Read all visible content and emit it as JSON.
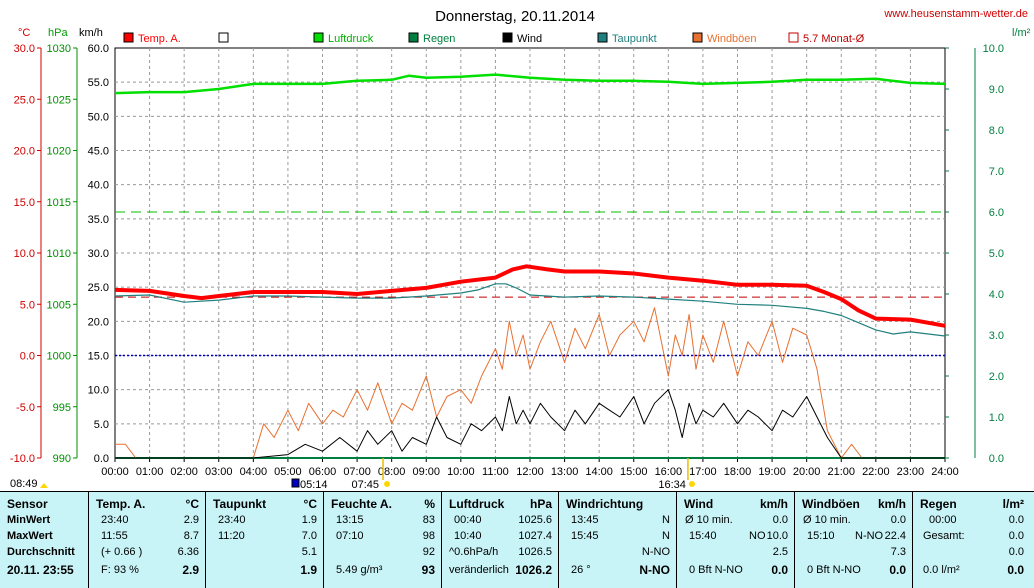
{
  "title": "Donnerstag, 20.11.2014",
  "site": "www.heusenstamm-wetter.de",
  "units": {
    "temp": "°C",
    "pressure": "hPa",
    "wind": "km/h",
    "rain": "l/m²"
  },
  "colors": {
    "temp": "#ff0000",
    "pressure": "#00e000",
    "dew": "#208080",
    "wind": "#000000",
    "gust": "#e87030",
    "rain": "#008040",
    "avg": "#c00000",
    "frost": "#0000c0",
    "rainAxis": "#008040"
  },
  "markers": {
    "sunrise": "07:45",
    "sunset": "16:34",
    "moonrise": "05:14",
    "moonset": "08:49"
  },
  "chart_data": {
    "type": "line",
    "x_labels": [
      "00:00",
      "01:00",
      "02:00",
      "03:00",
      "04:00",
      "05:00",
      "06:00",
      "07:00",
      "08:00",
      "09:00",
      "10:00",
      "11:00",
      "12:00",
      "13:00",
      "14:00",
      "15:00",
      "16:00",
      "17:00",
      "18:00",
      "19:00",
      "20:00",
      "21:00",
      "22:00",
      "23:00",
      "24:00"
    ],
    "axes": {
      "temp_ticks": [
        "30.0",
        "25.0",
        "20.0",
        "15.0",
        "10.0",
        "5.0",
        "0.0",
        "-5.0",
        "-10.0"
      ],
      "pressure_ticks": [
        "1030",
        "1025",
        "1020",
        "1015",
        "1010",
        "1005",
        "1000",
        "995",
        "990"
      ],
      "wind_ticks": [
        "60.0",
        "55.0",
        "50.0",
        "45.0",
        "40.0",
        "35.0",
        "30.0",
        "25.0",
        "20.0",
        "15.0",
        "10.0",
        "5.0",
        "0.0"
      ],
      "rain_ticks": [
        "10.0",
        "9.0",
        "8.0",
        "7.0",
        "6.0",
        "5.0",
        "4.0",
        "3.0",
        "2.0",
        "1.0",
        "0.0"
      ],
      "temp_range": [
        -10,
        30
      ],
      "wind_range": [
        0,
        60
      ],
      "rain_range": [
        0,
        10
      ],
      "pressure_range": [
        990,
        1030
      ]
    },
    "legend": [
      {
        "label": "Temp. A.",
        "color": "#ff0000",
        "style": "filled"
      },
      {
        "label": "",
        "color": "#ffffff",
        "style": "outline"
      },
      {
        "label": "Luftdruck",
        "color": "#00e000",
        "style": "filled"
      },
      {
        "label": "Regen",
        "color": "#008040",
        "style": "filled"
      },
      {
        "label": "Wind",
        "color": "#000000",
        "style": "filled"
      },
      {
        "label": "Taupunkt",
        "color": "#208080",
        "style": "filled"
      },
      {
        "label": "Windböen",
        "color": "#e87030",
        "style": "filled"
      },
      {
        "label": "5.7 Monat-Ø",
        "color": "#c00000",
        "style": "outline"
      }
    ],
    "month_avg_temp": 5.7,
    "series": [
      {
        "name": "Temp. A.",
        "unit": "°C",
        "x": [
          0,
          1,
          2,
          2.5,
          3,
          4,
          5,
          6,
          7,
          8,
          9,
          10,
          11,
          11.5,
          11.9,
          12.5,
          13,
          14,
          15,
          16,
          17,
          18,
          19,
          20,
          20.5,
          21,
          21.5,
          22,
          23,
          23.5,
          24
        ],
        "y": [
          6.4,
          6.3,
          5.8,
          5.6,
          5.8,
          6.2,
          6.2,
          6.2,
          6.0,
          6.3,
          6.6,
          7.2,
          7.6,
          8.4,
          8.7,
          8.4,
          8.2,
          8.2,
          8.0,
          7.6,
          7.3,
          6.9,
          6.9,
          6.8,
          6.2,
          5.5,
          4.4,
          3.6,
          3.5,
          3.2,
          2.9
        ]
      },
      {
        "name": "Taupunkt",
        "unit": "°C",
        "x": [
          0,
          1,
          2,
          3,
          4,
          5,
          6,
          7,
          8,
          9,
          10,
          10.5,
          11,
          11.3,
          11.6,
          12,
          13,
          14,
          15,
          16,
          17,
          18,
          19,
          20,
          20.5,
          21,
          21.5,
          22,
          22.5,
          23,
          24
        ],
        "y": [
          5.8,
          5.9,
          5.2,
          5.4,
          5.8,
          5.8,
          5.7,
          5.6,
          5.6,
          5.8,
          6.1,
          6.4,
          7.0,
          7.0,
          6.6,
          5.9,
          5.7,
          5.8,
          5.7,
          5.5,
          5.3,
          5.0,
          4.9,
          4.6,
          4.3,
          3.9,
          3.2,
          2.5,
          2.1,
          2.3,
          1.9
        ]
      },
      {
        "name": "Luftdruck",
        "unit": "hPa",
        "x": [
          0,
          1,
          2,
          3,
          4,
          5,
          6,
          7,
          8,
          8.5,
          9,
          10,
          11,
          12,
          13,
          14,
          15,
          16,
          17,
          18,
          19,
          20,
          21,
          22,
          23,
          24
        ],
        "y": [
          1025.6,
          1025.7,
          1025.7,
          1026.0,
          1026.5,
          1026.5,
          1026.5,
          1026.8,
          1026.9,
          1027.3,
          1027.1,
          1027.2,
          1027.4,
          1027.1,
          1026.9,
          1026.8,
          1026.8,
          1026.7,
          1026.5,
          1026.6,
          1026.7,
          1026.9,
          1026.9,
          1027.0,
          1026.6,
          1026.5
        ]
      },
      {
        "name": "Wind",
        "unit": "km/h",
        "x": [
          0,
          4,
          5,
          5.5,
          6,
          6.5,
          7,
          7.3,
          7.6,
          8,
          8.3,
          8.6,
          9,
          9.3,
          9.6,
          10,
          10.3,
          10.6,
          11,
          11.2,
          11.4,
          11.6,
          11.8,
          12,
          12.3,
          12.6,
          13,
          13.3,
          13.6,
          14,
          14.3,
          14.6,
          15,
          15.3,
          15.6,
          16,
          16.2,
          16.4,
          16.6,
          16.8,
          17,
          17.3,
          17.6,
          18,
          18.3,
          18.6,
          19,
          19.3,
          19.6,
          20,
          20.3,
          20.6,
          21,
          24
        ],
        "y": [
          0,
          0,
          0.5,
          2,
          1,
          3,
          1,
          4,
          2,
          4,
          1,
          3,
          2,
          6,
          3,
          2,
          5,
          4,
          6,
          4,
          9,
          5,
          7,
          5,
          8,
          6,
          4,
          7,
          5,
          8,
          7,
          6,
          9,
          5,
          8,
          10,
          7,
          3,
          8,
          5,
          7,
          6,
          8,
          5,
          7,
          6,
          4,
          7,
          6,
          9,
          6,
          3,
          0,
          0
        ]
      },
      {
        "name": "Windböen",
        "unit": "km/h",
        "x": [
          0,
          0.3,
          0.6,
          4,
          4.3,
          4.6,
          5,
          5.3,
          5.6,
          6,
          6.3,
          6.6,
          7,
          7.3,
          7.6,
          8,
          8.3,
          8.6,
          9,
          9.3,
          9.6,
          10,
          10.3,
          10.6,
          11,
          11.2,
          11.4,
          11.6,
          11.8,
          12,
          12.3,
          12.6,
          13,
          13.3,
          13.6,
          14,
          14.3,
          14.6,
          15,
          15.3,
          15.6,
          16,
          16.2,
          16.4,
          16.6,
          16.8,
          17,
          17.3,
          17.6,
          18,
          18.3,
          18.6,
          19,
          19.3,
          19.6,
          20,
          20.3,
          20.6,
          21,
          21.3,
          21.6,
          22,
          24
        ],
        "y": [
          2,
          2,
          0,
          0,
          5,
          3,
          7,
          4,
          8,
          5,
          7,
          6,
          10,
          7,
          11,
          5,
          8,
          7,
          12,
          6,
          9,
          10,
          8,
          12,
          16,
          13,
          20,
          15,
          18,
          13,
          17,
          20,
          14,
          19,
          16,
          21,
          15,
          18,
          20,
          17,
          22,
          12,
          18,
          15,
          21,
          13,
          18,
          14,
          20,
          12,
          17,
          15,
          20,
          14,
          19,
          18,
          13,
          4,
          0,
          2,
          0,
          0,
          0
        ]
      },
      {
        "name": "Regen",
        "unit": "l/m²",
        "x": [
          0,
          24
        ],
        "y": [
          0.0,
          0.0
        ]
      }
    ]
  },
  "stats": {
    "sensor": {
      "header": "Sensor",
      "rows": [
        "MinWert",
        "MaxWert",
        "Durchschnitt"
      ],
      "footer": "20.11.  23:55"
    },
    "temp": {
      "header": "Temp. A.",
      "unit": "°C",
      "min_time": "23:40",
      "min_val": "2.9",
      "max_time": "11:55",
      "max_val": "8.7",
      "avg_note": "(+ 0.66 )",
      "avg_val": "6.36",
      "footer_left": "F: 93 %",
      "footer_val": "2.9"
    },
    "dew": {
      "header": "Taupunkt",
      "unit": "°C",
      "min_time": "23:40",
      "min_val": "1.9",
      "max_time": "11:20",
      "max_val": "7.0",
      "avg_val": "5.1",
      "footer_val": "1.9"
    },
    "hum": {
      "header": "Feuchte A.",
      "unit": "%",
      "min_time": "13:15",
      "min_val": "83",
      "max_time": "07:10",
      "max_val": "98",
      "avg_val": "92",
      "footer_left": "5.49 g/m³",
      "footer_val": "93"
    },
    "press": {
      "header": "Luftdruck",
      "unit": "hPa",
      "min_time": "00:40",
      "min_val": "1025.6",
      "max_time": "10:40",
      "max_val": "1027.4",
      "avg_left": "^0.6hPa/h",
      "avg_val": "1026.5",
      "footer_left": "veränderlich",
      "footer_val": "1026.2"
    },
    "wdir": {
      "header": "Windrichtung",
      "min_time": "13:45",
      "min_val": "N",
      "max_time": "15:45",
      "max_val": "N",
      "avg_val": "N-NO",
      "footer_left": "26 °",
      "footer_val": "N-NO"
    },
    "wind": {
      "header": "Wind",
      "unit": "km/h",
      "min_time": "Ø 10 min.",
      "min_val": "0.0",
      "max_time": "15:40",
      "max_mid": "NO",
      "max_val": "10.0",
      "avg_val": "2.5",
      "footer_left": "0 Bft N-NO",
      "footer_val": "0.0"
    },
    "gust": {
      "header": "Windböen",
      "unit": "km/h",
      "min_time": "Ø 10 min.",
      "min_val": "0.0",
      "max_time": "15:10",
      "max_mid": "N-NO",
      "max_val": "22.4",
      "avg_val": "7.3",
      "footer_left": "0 Bft N-NO",
      "footer_val": "0.0"
    },
    "rain": {
      "header": "Regen",
      "unit": "l/m²",
      "min_time": "00:00",
      "min_val": "0.0",
      "max_time": "Gesamt:",
      "max_val": "0.0",
      "avg_val": "0.0",
      "footer_left": "0.0 l/m²",
      "footer_val": "0.0"
    }
  }
}
